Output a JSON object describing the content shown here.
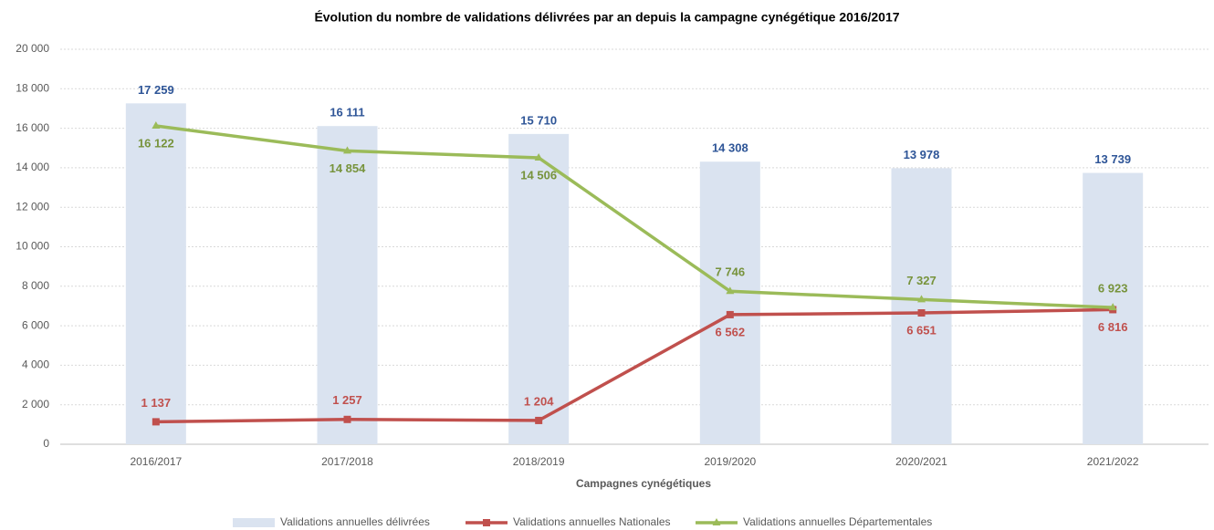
{
  "chart_data": {
    "type": "combo",
    "title": "Évolution du nombre de validations délivrées par an depuis la campagne cynégétique 2016/2017",
    "x_label": "Campagnes cynégétiques",
    "categories": [
      "2016/2017",
      "2017/2018",
      "2018/2019",
      "2019/2020",
      "2020/2021",
      "2021/2022"
    ],
    "series": [
      {
        "name": "Validations annuelles délivrées",
        "type": "bar",
        "color": "#dae3f0",
        "label_color": "#2e5597",
        "values": [
          17259,
          16111,
          15710,
          14308,
          13978,
          13739
        ],
        "value_labels": [
          "17 259",
          "16 111",
          "15 710",
          "14 308",
          "13 978",
          "13 739"
        ]
      },
      {
        "name": "Validations annuelles Nationales",
        "type": "line",
        "marker": "square",
        "color": "#c0504d",
        "label_color": "#c0504d",
        "values": [
          1137,
          1257,
          1204,
          6562,
          6651,
          6816
        ],
        "value_labels": [
          "1 137",
          "1 257",
          "1 204",
          "6 562",
          "6 651",
          "6 816"
        ]
      },
      {
        "name": "Validations annuelles Départementales",
        "type": "line",
        "marker": "triangle",
        "color": "#9bbb59",
        "label_color": "#77933c",
        "values": [
          16122,
          14854,
          14506,
          7746,
          7327,
          6923
        ],
        "value_labels": [
          "16 122",
          "14 854",
          "14 506",
          "7 746",
          "7 327",
          "6 923"
        ]
      }
    ],
    "ylim": [
      0,
      20000
    ],
    "yticks": [
      0,
      {
        "value": 2000,
        "label": "2 000"
      },
      {
        "value": 4000,
        "label": "4 000"
      },
      {
        "value": 6000,
        "label": "6 000"
      },
      {
        "value": 8000,
        "label": "8 000"
      },
      {
        "value": 10000,
        "label": "10 000"
      },
      {
        "value": 12000,
        "label": "12 000"
      },
      {
        "value": 14000,
        "label": "14 000"
      },
      {
        "value": 16000,
        "label": "16 000"
      },
      {
        "value": 18000,
        "label": "18 000"
      },
      {
        "value": 20000,
        "label": "20 000"
      }
    ],
    "grid": true,
    "legend": "bottom"
  }
}
